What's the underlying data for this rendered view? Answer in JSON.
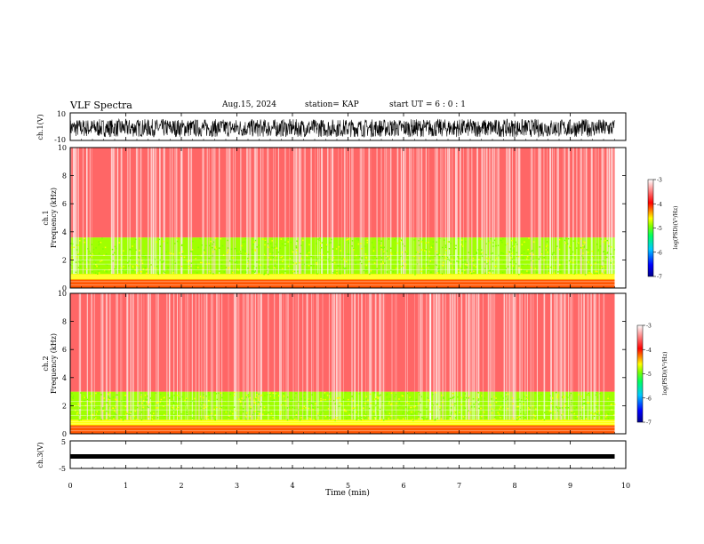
{
  "header": {
    "title": "VLF Spectra",
    "date": "Aug.15, 2024",
    "station": "station= KAP",
    "start_ut": "start  UT =   6 : 0  : 1"
  },
  "chart_data": [
    {
      "type": "line",
      "panel": "ch1-waveform",
      "ylabel": "ch.1(V)",
      "ylim": [
        -10,
        10
      ],
      "yticklabels": [
        "10",
        "-10"
      ],
      "xlim": [
        0,
        10
      ],
      "description_of_values": "voltage waveform spanning 0 to ~9.8 min",
      "envelope": {
        "min_v": -7.5,
        "max_v": 5.5
      }
    },
    {
      "type": "heatmap",
      "panel": "ch1-spectrogram",
      "ylabel": "ch.1\nFrequency (kHz)",
      "ylim": [
        0,
        10
      ],
      "yticks": [
        0,
        2,
        4,
        6,
        8,
        10
      ],
      "xlim": [
        0,
        10
      ],
      "data_extent_min": 9.8,
      "bands": [
        {
          "from_khz": 0.0,
          "to_khz": 0.6,
          "log_psd": -4.2
        },
        {
          "from_khz": 0.6,
          "to_khz": 1.0,
          "log_psd": -4.6
        },
        {
          "from_khz": 1.0,
          "to_khz": 3.6,
          "log_psd": -4.9
        },
        {
          "from_khz": 3.6,
          "to_khz": 10.0,
          "log_psd": -3.6
        }
      ],
      "colorbar": {
        "label": "log(PSD)(V²/Hz)",
        "ticks": [
          "-3",
          "-4",
          "-5",
          "-6",
          "-7"
        ],
        "range": [
          -7,
          -3
        ]
      }
    },
    {
      "type": "heatmap",
      "panel": "ch2-spectrogram",
      "ylabel": "ch.2\nFrequency (kHz)",
      "ylim": [
        0,
        10
      ],
      "yticks": [
        0,
        2,
        4,
        6,
        8,
        10
      ],
      "xlim": [
        0,
        10
      ],
      "data_extent_min": 9.8,
      "bands": [
        {
          "from_khz": 0.0,
          "to_khz": 0.6,
          "log_psd": -4.2
        },
        {
          "from_khz": 0.6,
          "to_khz": 1.0,
          "log_psd": -4.6
        },
        {
          "from_khz": 1.0,
          "to_khz": 3.0,
          "log_psd": -4.9
        },
        {
          "from_khz": 3.0,
          "to_khz": 10.0,
          "log_psd": -3.6
        }
      ],
      "colorbar": {
        "label": "log(PSD)(V²/Hz)",
        "ticks": [
          "-3",
          "-4",
          "-5",
          "-6",
          "-7"
        ],
        "range": [
          -7,
          -3
        ]
      }
    },
    {
      "type": "line",
      "panel": "ch3-waveform",
      "ylabel": "ch.3(V)",
      "ylim": [
        -5,
        5
      ],
      "yticklabels": [
        "5",
        "-5"
      ],
      "xlim": [
        0,
        10
      ],
      "xlabel": "Time  (min)",
      "xticks": [
        0,
        1,
        2,
        3,
        4,
        5,
        6,
        7,
        8,
        9,
        10
      ],
      "level_v": -0.8
    }
  ],
  "colors": {
    "psd_scale": [
      "#00008b",
      "#0000ff",
      "#00c0ff",
      "#00ff80",
      "#80ff00",
      "#ffff00",
      "#ff8000",
      "#ff0000",
      "#ffffff"
    ],
    "trace": "#000000"
  }
}
